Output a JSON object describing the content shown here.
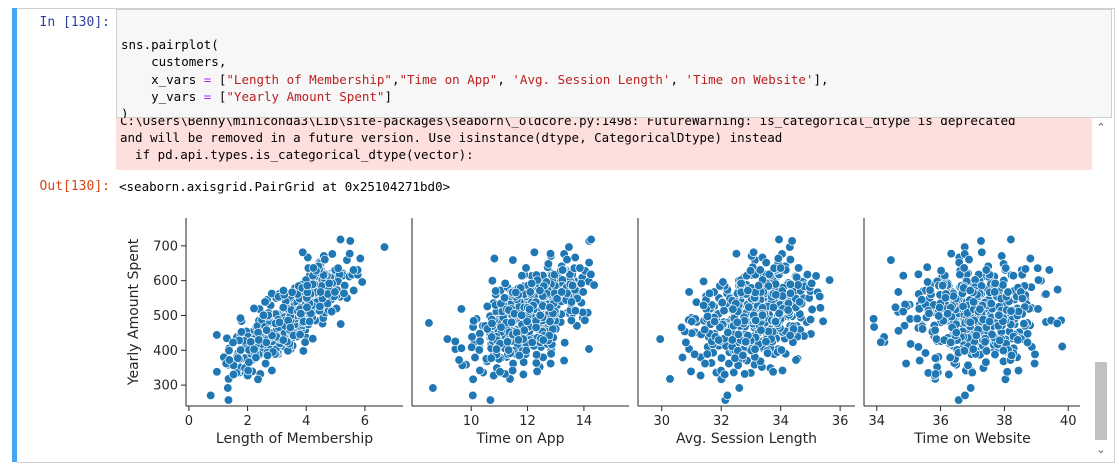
{
  "cell": {
    "in_prompt": "In [130]:",
    "out_prompt": "Out[130]:",
    "code_lines": [
      [
        {
          "t": "sns.pairplot("
        }
      ],
      [
        {
          "t": "    customers,"
        }
      ],
      [
        {
          "t": "    x_vars "
        },
        {
          "t": "=",
          "c": "eq"
        },
        {
          "t": " ["
        },
        {
          "t": "\"Length of Membership\"",
          "c": "str"
        },
        {
          "t": ","
        },
        {
          "t": "\"Time on App\"",
          "c": "str"
        },
        {
          "t": ", "
        },
        {
          "t": "'Avg. Session Length'",
          "c": "str"
        },
        {
          "t": ", "
        },
        {
          "t": "'Time on Website'",
          "c": "str"
        },
        {
          "t": "],"
        }
      ],
      [
        {
          "t": "    y_vars "
        },
        {
          "t": "=",
          "c": "eq"
        },
        {
          "t": " ["
        },
        {
          "t": "\"Yearly Amount Spent\"",
          "c": "str"
        },
        {
          "t": "]"
        }
      ],
      [
        {
          "t": ")"
        }
      ]
    ],
    "stderr_lines": [
      "C:\\Users\\Benny\\miniconda3\\Lib\\site-packages\\seaborn\\_oldcore.py:1498: FutureWarning: is_categorical_dtype is deprecated",
      "and will be removed in a future version. Use isinstance(dtype, CategoricalDtype) instead",
      "  if pd.api.types.is_categorical_dtype(vector):"
    ],
    "output_text": "<seaborn.axisgrid.PairGrid at 0x25104271bd0>"
  },
  "chart_data": {
    "type": "scatter",
    "point_color": "#1f77b4",
    "point_count": 500,
    "y_label": "Yearly Amount Spent",
    "y_ticks": [
      300,
      400,
      500,
      600,
      700
    ],
    "y_range": [
      240,
      780
    ],
    "y_approx": {
      "mean": 499,
      "sd": 79,
      "min": 257,
      "max": 766
    },
    "panels": [
      {
        "x_label": "Length of Membership",
        "x_ticks": [
          0,
          2,
          4,
          6
        ],
        "x_range": [
          -0.1,
          7.3
        ],
        "x_approx": {
          "mean": 3.5,
          "sd": 1.0,
          "min": 0.3,
          "max": 6.9
        },
        "correlation": 0.81
      },
      {
        "x_label": "Time on App",
        "x_ticks": [
          10,
          12,
          14
        ],
        "x_range": [
          7.9,
          15.6
        ],
        "x_approx": {
          "mean": 12.05,
          "sd": 1.0,
          "min": 8.5,
          "max": 15.1
        },
        "correlation": 0.5
      },
      {
        "x_label": "Avg. Session Length",
        "x_ticks": [
          30,
          32,
          34,
          36
        ],
        "x_range": [
          29.2,
          36.5
        ],
        "x_approx": {
          "mean": 33.05,
          "sd": 1.0,
          "min": 29.5,
          "max": 36.1
        },
        "correlation": 0.36
      },
      {
        "x_label": "Time on Website",
        "x_ticks": [
          34,
          36,
          38,
          40
        ],
        "x_range": [
          33.6,
          40.4
        ],
        "x_approx": {
          "mean": 37.06,
          "sd": 1.0,
          "min": 33.9,
          "max": 40.0
        },
        "correlation": 0.0
      }
    ]
  }
}
